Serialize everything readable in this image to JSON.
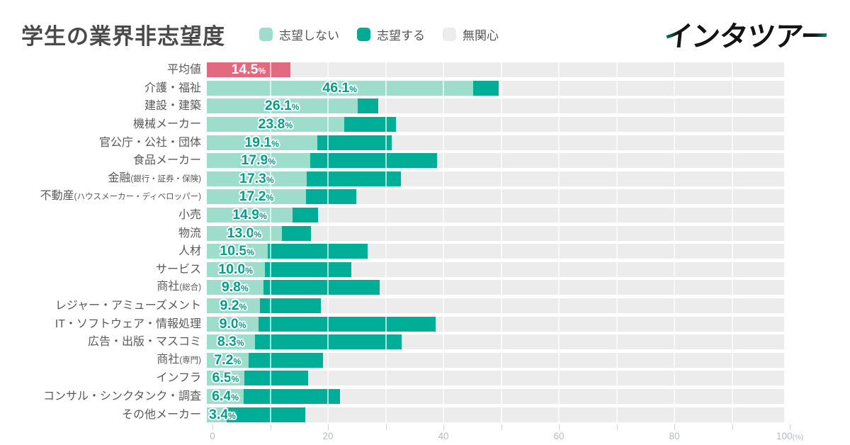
{
  "header": {
    "title": "学生の業界非志望度",
    "legend": [
      {
        "label": "志望しない",
        "color": "#9edccb"
      },
      {
        "label": "志望する",
        "color": "#00ab94"
      },
      {
        "label": "無関心",
        "color": "#ececec"
      }
    ],
    "logo_text": "インタツアー"
  },
  "colors": {
    "not_aspire": "#9edccb",
    "aspire": "#00ae97",
    "indifferent": "#ececec",
    "average_bar": "#e2697e",
    "value_label": "#009e88",
    "title_text": "#4a4a4a",
    "category_text": "#595959",
    "axis_text": "#b3bbc1"
  },
  "chart_data": {
    "type": "bar",
    "orientation": "horizontal",
    "stacked": true,
    "title": "学生の業界非志望度",
    "unit": "%",
    "xlim": [
      0,
      100
    ],
    "x_tick_labels": [
      0,
      20,
      40,
      60,
      80,
      100
    ],
    "x_tick_minor_step": 10,
    "x_axis_suffix": "(%)",
    "legend_position": "top",
    "series_names": [
      "志望しない",
      "志望する",
      "無関心"
    ],
    "note": "志望しない values are printed on the chart; 志望する and 無関心 are estimated from bar lengths",
    "rows": [
      {
        "category": "平均値",
        "category_sub": "",
        "not_aspire": 14.5,
        "aspire": 0,
        "indifferent": 85.5,
        "highlight": true
      },
      {
        "category": "介護・福祉",
        "category_sub": "",
        "not_aspire": 46.1,
        "aspire": 4.4,
        "indifferent": 49.5,
        "highlight": false
      },
      {
        "category": "建設・建築",
        "category_sub": "",
        "not_aspire": 26.1,
        "aspire": 3.6,
        "indifferent": 70.3,
        "highlight": false
      },
      {
        "category": "機械メーカー",
        "category_sub": "",
        "not_aspire": 23.8,
        "aspire": 9.0,
        "indifferent": 67.2,
        "highlight": false
      },
      {
        "category": "官公庁・公社・団体",
        "category_sub": "",
        "not_aspire": 19.1,
        "aspire": 12.9,
        "indifferent": 68.0,
        "highlight": false
      },
      {
        "category": "食品メーカー",
        "category_sub": "",
        "not_aspire": 17.9,
        "aspire": 22.0,
        "indifferent": 60.1,
        "highlight": false
      },
      {
        "category": "金融",
        "category_sub": "(銀行・証券・保険)",
        "not_aspire": 17.3,
        "aspire": 16.3,
        "indifferent": 66.4,
        "highlight": false
      },
      {
        "category": "不動産",
        "category_sub": "(ハウスメーカー・ディベロッパー)",
        "not_aspire": 17.2,
        "aspire": 8.7,
        "indifferent": 74.1,
        "highlight": false
      },
      {
        "category": "小売",
        "category_sub": "",
        "not_aspire": 14.9,
        "aspire": 4.4,
        "indifferent": 80.7,
        "highlight": false
      },
      {
        "category": "物流",
        "category_sub": "",
        "not_aspire": 13.0,
        "aspire": 5.0,
        "indifferent": 82.0,
        "highlight": false
      },
      {
        "category": "人材",
        "category_sub": "",
        "not_aspire": 10.5,
        "aspire": 17.3,
        "indifferent": 72.2,
        "highlight": false
      },
      {
        "category": "サービス",
        "category_sub": "",
        "not_aspire": 10.0,
        "aspire": 15.0,
        "indifferent": 75.0,
        "highlight": false
      },
      {
        "category": "商社",
        "category_sub": "(総合)",
        "not_aspire": 9.8,
        "aspire": 20.1,
        "indifferent": 70.1,
        "highlight": false
      },
      {
        "category": "レジャー・アミューズメント",
        "category_sub": "",
        "not_aspire": 9.2,
        "aspire": 10.6,
        "indifferent": 80.2,
        "highlight": false
      },
      {
        "category": "IT・ソフトウェア・情報処理",
        "category_sub": "",
        "not_aspire": 9.0,
        "aspire": 30.6,
        "indifferent": 60.4,
        "highlight": false
      },
      {
        "category": "広告・出版・マスコミ",
        "category_sub": "",
        "not_aspire": 8.3,
        "aspire": 25.4,
        "indifferent": 66.3,
        "highlight": false
      },
      {
        "category": "商社",
        "category_sub": "(専門)",
        "not_aspire": 7.2,
        "aspire": 12.9,
        "indifferent": 79.9,
        "highlight": false
      },
      {
        "category": "インフラ",
        "category_sub": "",
        "not_aspire": 6.5,
        "aspire": 11.0,
        "indifferent": 82.5,
        "highlight": false
      },
      {
        "category": "コンサル・シンクタンク・調査",
        "category_sub": "",
        "not_aspire": 6.4,
        "aspire": 16.7,
        "indifferent": 76.9,
        "highlight": false
      },
      {
        "category": "その他メーカー",
        "category_sub": "",
        "not_aspire": 3.4,
        "aspire": 13.6,
        "indifferent": 83.0,
        "highlight": false
      }
    ]
  }
}
